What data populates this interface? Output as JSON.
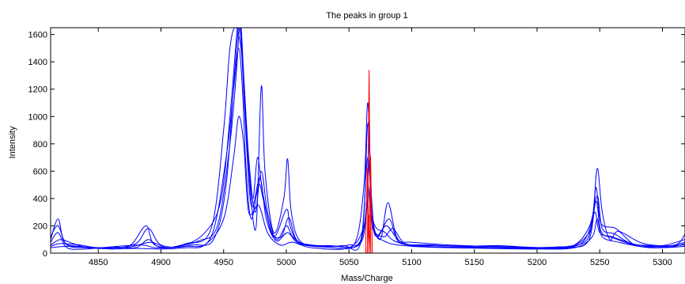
{
  "chart_data": {
    "type": "line",
    "title": "The peaks in group 1",
    "xlabel": "Mass/Charge",
    "ylabel": "Intensity",
    "xlim": [
      4812,
      5318
    ],
    "ylim": [
      0,
      1650
    ],
    "x_ticks": [
      4850,
      4900,
      4950,
      5000,
      5050,
      5100,
      5150,
      5200,
      5250,
      5300
    ],
    "y_ticks": [
      0,
      200,
      400,
      600,
      800,
      1000,
      1200,
      1400,
      1600
    ],
    "grid": false,
    "colors": {
      "spectra": "#0000ff",
      "marker": "#ff0000"
    },
    "series": [
      {
        "values": [
          [
            4812,
            120
          ],
          [
            4818,
            200
          ],
          [
            4825,
            60
          ],
          [
            4840,
            40
          ],
          [
            4860,
            35
          ],
          [
            4880,
            70
          ],
          [
            4890,
            180
          ],
          [
            4900,
            60
          ],
          [
            4920,
            50
          ],
          [
            4940,
            120
          ],
          [
            4952,
            700
          ],
          [
            4958,
            1200
          ],
          [
            4962,
            1500
          ],
          [
            4965,
            1200
          ],
          [
            4968,
            600
          ],
          [
            4972,
            250
          ],
          [
            4978,
            500
          ],
          [
            4982,
            380
          ],
          [
            4990,
            120
          ],
          [
            5000,
            320
          ],
          [
            5003,
            200
          ],
          [
            5010,
            80
          ],
          [
            5030,
            50
          ],
          [
            5050,
            60
          ],
          [
            5060,
            120
          ],
          [
            5065,
            700
          ],
          [
            5070,
            150
          ],
          [
            5080,
            200
          ],
          [
            5090,
            90
          ],
          [
            5100,
            80
          ],
          [
            5130,
            60
          ],
          [
            5160,
            50
          ],
          [
            5190,
            45
          ],
          [
            5210,
            40
          ],
          [
            5230,
            60
          ],
          [
            5242,
            200
          ],
          [
            5248,
            420
          ],
          [
            5252,
            180
          ],
          [
            5262,
            140
          ],
          [
            5275,
            70
          ],
          [
            5290,
            55
          ],
          [
            5305,
            50
          ],
          [
            5318,
            80
          ]
        ]
      },
      {
        "values": [
          [
            4812,
            80
          ],
          [
            4818,
            150
          ],
          [
            4825,
            40
          ],
          [
            4840,
            30
          ],
          [
            4860,
            45
          ],
          [
            4880,
            40
          ],
          [
            4890,
            100
          ],
          [
            4900,
            40
          ],
          [
            4920,
            70
          ],
          [
            4940,
            180
          ],
          [
            4950,
            900
          ],
          [
            4955,
            1500
          ],
          [
            4960,
            1650
          ],
          [
            4965,
            1400
          ],
          [
            4970,
            700
          ],
          [
            4975,
            300
          ],
          [
            4980,
            600
          ],
          [
            4985,
            300
          ],
          [
            4992,
            100
          ],
          [
            5000,
            200
          ],
          [
            5005,
            120
          ],
          [
            5015,
            60
          ],
          [
            5040,
            50
          ],
          [
            5055,
            80
          ],
          [
            5062,
            500
          ],
          [
            5065,
            1100
          ],
          [
            5068,
            400
          ],
          [
            5072,
            120
          ],
          [
            5082,
            250
          ],
          [
            5090,
            80
          ],
          [
            5110,
            60
          ],
          [
            5140,
            50
          ],
          [
            5170,
            55
          ],
          [
            5200,
            40
          ],
          [
            5225,
            50
          ],
          [
            5240,
            100
          ],
          [
            5246,
            300
          ],
          [
            5250,
            150
          ],
          [
            5260,
            120
          ],
          [
            5280,
            60
          ],
          [
            5300,
            55
          ],
          [
            5318,
            100
          ]
        ]
      },
      {
        "values": [
          [
            4812,
            60
          ],
          [
            4820,
            100
          ],
          [
            4830,
            70
          ],
          [
            4845,
            35
          ],
          [
            4865,
            50
          ],
          [
            4885,
            60
          ],
          [
            4895,
            40
          ],
          [
            4910,
            45
          ],
          [
            4930,
            90
          ],
          [
            4945,
            200
          ],
          [
            4955,
            800
          ],
          [
            4960,
            1300
          ],
          [
            4963,
            1650
          ],
          [
            4966,
            1300
          ],
          [
            4971,
            500
          ],
          [
            4976,
            200
          ],
          [
            4980,
            1220
          ],
          [
            4983,
            600
          ],
          [
            4990,
            150
          ],
          [
            4998,
            400
          ],
          [
            5001,
            690
          ],
          [
            5004,
            300
          ],
          [
            5012,
            80
          ],
          [
            5035,
            55
          ],
          [
            5058,
            60
          ],
          [
            5064,
            300
          ],
          [
            5066,
            640
          ],
          [
            5069,
            200
          ],
          [
            5078,
            120
          ],
          [
            5085,
            180
          ],
          [
            5095,
            70
          ],
          [
            5115,
            60
          ],
          [
            5150,
            45
          ],
          [
            5185,
            40
          ],
          [
            5215,
            45
          ],
          [
            5235,
            70
          ],
          [
            5244,
            250
          ],
          [
            5248,
            620
          ],
          [
            5252,
            300
          ],
          [
            5258,
            100
          ],
          [
            5265,
            160
          ],
          [
            5285,
            70
          ],
          [
            5310,
            60
          ],
          [
            5318,
            140
          ]
        ]
      },
      {
        "values": [
          [
            4812,
            100
          ],
          [
            4818,
            250
          ],
          [
            4823,
            80
          ],
          [
            4835,
            50
          ],
          [
            4855,
            40
          ],
          [
            4875,
            55
          ],
          [
            4888,
            200
          ],
          [
            4895,
            60
          ],
          [
            4915,
            50
          ],
          [
            4935,
            150
          ],
          [
            4948,
            400
          ],
          [
            4956,
            1100
          ],
          [
            4961,
            1650
          ],
          [
            4964,
            1650
          ],
          [
            4968,
            900
          ],
          [
            4973,
            400
          ],
          [
            4977,
            700
          ],
          [
            4981,
            450
          ],
          [
            4988,
            160
          ],
          [
            4996,
            120
          ],
          [
            5002,
            260
          ],
          [
            5008,
            100
          ],
          [
            5020,
            60
          ],
          [
            5045,
            55
          ],
          [
            5060,
            100
          ],
          [
            5065,
            950
          ],
          [
            5068,
            300
          ],
          [
            5075,
            100
          ],
          [
            5081,
            370
          ],
          [
            5088,
            120
          ],
          [
            5098,
            60
          ],
          [
            5120,
            55
          ],
          [
            5155,
            50
          ],
          [
            5180,
            45
          ],
          [
            5205,
            35
          ],
          [
            5228,
            50
          ],
          [
            5243,
            180
          ],
          [
            5247,
            480
          ],
          [
            5251,
            220
          ],
          [
            5263,
            180
          ],
          [
            5278,
            60
          ],
          [
            5295,
            50
          ],
          [
            5318,
            60
          ]
        ]
      },
      {
        "values": [
          [
            4812,
            40
          ],
          [
            4825,
            50
          ],
          [
            4840,
            45
          ],
          [
            4860,
            30
          ],
          [
            4880,
            35
          ],
          [
            4900,
            30
          ],
          [
            4920,
            40
          ],
          [
            4935,
            60
          ],
          [
            4950,
            250
          ],
          [
            4958,
            700
          ],
          [
            4962,
            1000
          ],
          [
            4966,
            800
          ],
          [
            4970,
            300
          ],
          [
            4978,
            350
          ],
          [
            4985,
            150
          ],
          [
            4995,
            60
          ],
          [
            5005,
            80
          ],
          [
            5020,
            40
          ],
          [
            5050,
            40
          ],
          [
            5062,
            200
          ],
          [
            5065,
            500
          ],
          [
            5069,
            180
          ],
          [
            5080,
            80
          ],
          [
            5100,
            50
          ],
          [
            5130,
            40
          ],
          [
            5160,
            35
          ],
          [
            5200,
            30
          ],
          [
            5230,
            40
          ],
          [
            5244,
            120
          ],
          [
            5248,
            250
          ],
          [
            5252,
            120
          ],
          [
            5265,
            80
          ],
          [
            5290,
            40
          ],
          [
            5318,
            50
          ]
        ]
      },
      {
        "values": [
          [
            4812,
            50
          ],
          [
            4820,
            70
          ],
          [
            4835,
            60
          ],
          [
            4850,
            40
          ],
          [
            4875,
            45
          ],
          [
            4892,
            80
          ],
          [
            4905,
            40
          ],
          [
            4925,
            60
          ],
          [
            4942,
            100
          ],
          [
            4952,
            500
          ],
          [
            4959,
            1350
          ],
          [
            4963,
            1650
          ],
          [
            4967,
            1000
          ],
          [
            4972,
            350
          ],
          [
            4979,
            550
          ],
          [
            4984,
            250
          ],
          [
            4992,
            90
          ],
          [
            5001,
            150
          ],
          [
            5010,
            70
          ],
          [
            5030,
            45
          ],
          [
            5055,
            50
          ],
          [
            5063,
            250
          ],
          [
            5066,
            800
          ],
          [
            5069,
            250
          ],
          [
            5079,
            150
          ],
          [
            5086,
            90
          ],
          [
            5100,
            55
          ],
          [
            5125,
            45
          ],
          [
            5165,
            40
          ],
          [
            5195,
            35
          ],
          [
            5225,
            40
          ],
          [
            5241,
            90
          ],
          [
            5247,
            380
          ],
          [
            5251,
            160
          ],
          [
            5261,
            110
          ],
          [
            5282,
            50
          ],
          [
            5306,
            45
          ],
          [
            5318,
            70
          ]
        ]
      }
    ],
    "marker_lines": [
      {
        "x": 5066,
        "peak": 1340
      },
      {
        "x": 5064.6,
        "peak": 620
      },
      {
        "x": 5067.2,
        "peak": 710
      },
      {
        "x": 5065.8,
        "peak": 280
      }
    ]
  }
}
